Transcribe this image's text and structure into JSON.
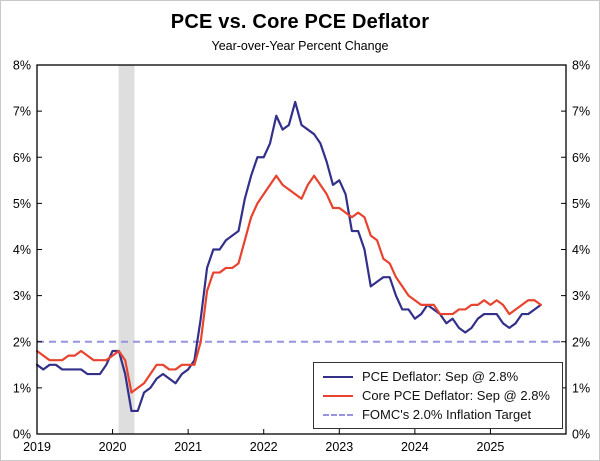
{
  "title": "PCE vs. Core PCE Deflator",
  "subtitle": "Year-over-Year Percent Change",
  "colors": {
    "pce": "#33308a",
    "core": "#e8432e",
    "target": "#9693e0",
    "recession": "#dedede",
    "frame": "#000000"
  },
  "chart_data": {
    "type": "line",
    "title": "PCE vs. Core PCE Deflator",
    "subtitle": "Year-over-Year Percent Change",
    "ylabel_left": "percent",
    "ylabel_right": "percent",
    "ylim": [
      0,
      8
    ],
    "xlim": [
      2019,
      2026
    ],
    "grid": false,
    "legend_position": "lower right",
    "y_ticks": [
      "0%",
      "1%",
      "2%",
      "3%",
      "4%",
      "5%",
      "6%",
      "7%",
      "8%"
    ],
    "x_ticks": [
      "2019",
      "2020",
      "2021",
      "2022",
      "2023",
      "2024",
      "2025"
    ],
    "target_line": 2.0,
    "recession_band": [
      2020.08,
      2020.29
    ],
    "x_start": 2019.0,
    "x_step": "monthly",
    "last_point": "Sep 2025",
    "legend": {
      "pce": "PCE Deflator: Sep @ 2.8%",
      "core": "Core PCE Deflator: Sep @ 2.8%",
      "target": "FOMC's 2.0% Inflation Target"
    },
    "series": [
      {
        "name": "PCE Deflator",
        "color": "#33308a",
        "values": [
          1.5,
          1.4,
          1.5,
          1.5,
          1.4,
          1.4,
          1.4,
          1.4,
          1.3,
          1.3,
          1.3,
          1.5,
          1.8,
          1.8,
          1.3,
          0.5,
          0.5,
          0.9,
          1.0,
          1.2,
          1.3,
          1.2,
          1.1,
          1.3,
          1.4,
          1.6,
          2.5,
          3.6,
          4.0,
          4.0,
          4.2,
          4.3,
          4.4,
          5.1,
          5.6,
          6.0,
          6.0,
          6.3,
          6.9,
          6.6,
          6.7,
          7.2,
          6.7,
          6.6,
          6.5,
          6.3,
          5.9,
          5.4,
          5.5,
          5.2,
          4.4,
          4.4,
          4.0,
          3.2,
          3.3,
          3.4,
          3.4,
          3.0,
          2.7,
          2.7,
          2.5,
          2.6,
          2.8,
          2.7,
          2.6,
          2.4,
          2.5,
          2.3,
          2.2,
          2.3,
          2.5,
          2.6,
          2.6,
          2.6,
          2.4,
          2.3,
          2.4,
          2.6,
          2.6,
          2.7,
          2.8
        ]
      },
      {
        "name": "Core PCE Deflator",
        "color": "#e8432e",
        "values": [
          1.8,
          1.7,
          1.6,
          1.6,
          1.6,
          1.7,
          1.7,
          1.8,
          1.7,
          1.6,
          1.6,
          1.6,
          1.7,
          1.8,
          1.6,
          0.9,
          1.0,
          1.1,
          1.3,
          1.5,
          1.5,
          1.4,
          1.4,
          1.5,
          1.5,
          1.5,
          2.0,
          3.1,
          3.5,
          3.5,
          3.6,
          3.6,
          3.7,
          4.2,
          4.7,
          5.0,
          5.2,
          5.4,
          5.6,
          5.4,
          5.3,
          5.2,
          5.1,
          5.4,
          5.6,
          5.4,
          5.2,
          4.9,
          4.9,
          4.8,
          4.7,
          4.8,
          4.7,
          4.3,
          4.2,
          3.8,
          3.7,
          3.4,
          3.2,
          3.0,
          2.9,
          2.8,
          2.8,
          2.8,
          2.6,
          2.6,
          2.6,
          2.7,
          2.7,
          2.8,
          2.8,
          2.9,
          2.8,
          2.9,
          2.8,
          2.6,
          2.7,
          2.8,
          2.9,
          2.9,
          2.8
        ]
      }
    ]
  }
}
